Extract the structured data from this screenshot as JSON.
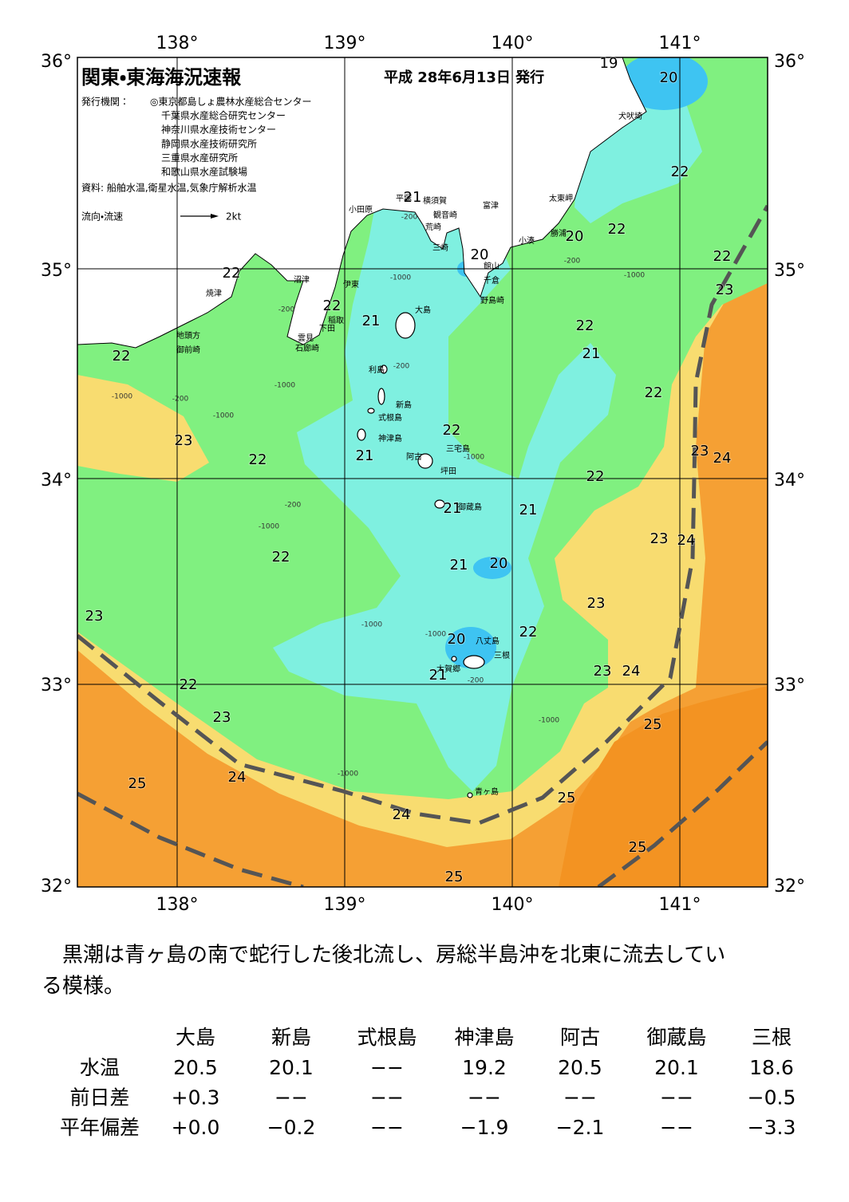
{
  "header": {
    "title": "関東・東海海況速報",
    "issue_date": "平成 28年6月13日 発行",
    "publisher_label": "発行機関：",
    "publishers": [
      "◎東京都島しょ農林水産総合センター",
      "千葉県水産総合研究センター",
      "神奈川県水産技術センター",
      "静岡県水産技術研究所",
      "三重県水産研究所",
      "和歌山県水産試験場"
    ],
    "sources": "資料: 船舶水温,衛星水温,気象庁解析水温",
    "current_legend": "流向・流速",
    "current_scale": "2kt"
  },
  "map": {
    "lon_labels": [
      "138°",
      "139°",
      "140°",
      "141°"
    ],
    "lat_labels": [
      "36°",
      "35°",
      "34°",
      "33°",
      "32°"
    ],
    "temperature_labels": [
      19,
      20,
      22,
      20,
      22,
      22,
      23,
      20,
      21,
      22,
      22,
      21,
      22,
      21,
      22,
      22,
      22,
      23,
      21,
      22,
      23,
      24,
      22,
      21,
      21,
      23,
      24,
      22,
      21,
      20,
      23,
      23,
      22,
      20,
      23,
      24,
      21,
      22,
      23,
      25,
      25,
      24,
      25,
      24,
      25,
      25
    ],
    "place_names": [
      "犬吠埼",
      "太東岬",
      "勝浦",
      "小湊",
      "富津",
      "観音崎",
      "横須賀",
      "平塚",
      "小田原",
      "荒崎",
      "三崎",
      "館山",
      "千倉",
      "野島崎",
      "沼津",
      "伊東",
      "焼津",
      "稲取",
      "下田",
      "雲見",
      "石廊崎",
      "地頭方",
      "御前崎",
      "大島",
      "利島",
      "新島",
      "式根島",
      "神津島",
      "三宅島",
      "阿古",
      "坪田",
      "御蔵島",
      "八丈島",
      "三根",
      "大賀郷",
      "青ヶ島"
    ],
    "depth_labels": [
      "-1000",
      "-200",
      "-200",
      "-1000",
      "-200",
      "-1000",
      "-1000",
      "-200",
      "-1000",
      "-1000",
      "-200",
      "-1000",
      "-1000",
      "-1000",
      "-200",
      "-1000",
      "-1000",
      "-200"
    ]
  },
  "summary": [
    "　黒潮は青ヶ島の南で蛇行した後北流し、房総半島沖を北東に流去してい",
    "る模様。"
  ],
  "table": {
    "columns": [
      "大島",
      "新島",
      "式根島",
      "神津島",
      "阿古",
      "御蔵島",
      "三根"
    ],
    "rows": [
      {
        "label": "水温",
        "cells": [
          "20.5",
          "20.1",
          "−−",
          "19.2",
          "20.5",
          "20.1",
          "18.6"
        ]
      },
      {
        "label": "前日差",
        "cells": [
          "+0.3",
          "−−",
          "−−",
          "−−",
          "−−",
          "−−",
          "−0.5"
        ]
      },
      {
        "label": "平年偏差",
        "cells": [
          "+0.0",
          "−0.2",
          "−−",
          "−1.9",
          "−2.1",
          "−−",
          "−3.3"
        ]
      }
    ]
  }
}
